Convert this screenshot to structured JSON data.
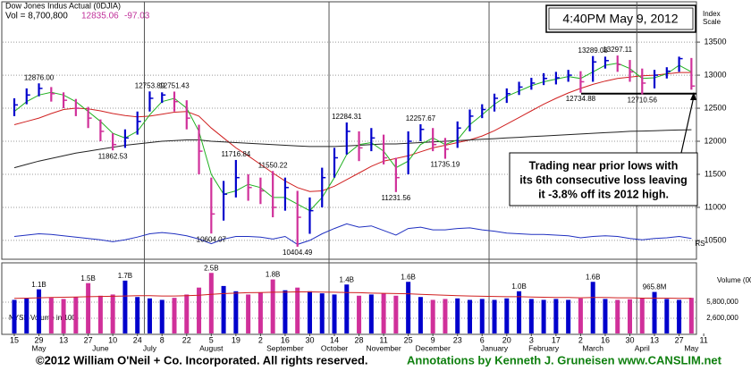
{
  "chart_data": {
    "type": "ohlc",
    "title": "Dow Jones Indus Actual (0DJIA)",
    "volume_text": "Vol = 8,700,800",
    "change": -97.03,
    "timestamp": "4:40PM May 9, 2012",
    "y_axis_label": [
      "Index",
      "Scale"
    ],
    "annotation": [
      "Trading near prior lows with",
      "its 6th consecutive loss leaving",
      "it -3.8% off its 2012 high."
    ],
    "categories": [
      "15",
      null,
      "29",
      null,
      "13",
      null,
      "27",
      null,
      "10",
      null,
      "24",
      null,
      "8",
      null,
      "22",
      null,
      "5",
      null,
      "19",
      null,
      "2",
      null,
      "16",
      null,
      "30",
      null,
      "14",
      null,
      "28",
      null,
      "11",
      null,
      "25",
      null,
      "9",
      null,
      "23",
      null,
      "6",
      null,
      "20",
      null,
      "3",
      null,
      "17",
      null,
      "2",
      null,
      "16",
      null,
      "30",
      null,
      "13",
      null,
      "27",
      null,
      "11"
    ],
    "months": [
      null,
      null,
      "May",
      null,
      null,
      null,
      null,
      "June",
      null,
      null,
      null,
      "July",
      null,
      null,
      null,
      null,
      "August",
      null,
      null,
      null,
      null,
      null,
      "September",
      null,
      null,
      null,
      "October",
      null,
      null,
      null,
      "November",
      null,
      null,
      null,
      "December",
      null,
      null,
      null,
      null,
      "January",
      null,
      null,
      null,
      "February",
      null,
      null,
      null,
      "March",
      null,
      null,
      null,
      "April",
      null,
      null,
      null,
      "May",
      null
    ],
    "ylim": [
      10215,
      14110
    ],
    "yticks": [
      10500,
      11000,
      11500,
      12000,
      12500,
      13000,
      13500
    ],
    "grid": true,
    "up_color": "#0000cc",
    "down_color": "#d0309a",
    "high": {
      "values": [
        12650,
        12800,
        12876,
        12820,
        12740,
        12640,
        12520,
        12330,
        12120,
        12180,
        12450,
        12753.89,
        12740,
        12751.43,
        12620,
        12250,
        11450,
        11400,
        11716.84,
        11500,
        11450,
        11550.22,
        11450,
        11250,
        11150,
        11600,
        11900,
        12284.31,
        12150,
        12200,
        12100,
        11750,
        12150,
        12257.67,
        12200,
        12050,
        12300,
        12480,
        12560,
        12720,
        12800,
        12900,
        12960,
        13030,
        13050,
        13080,
        13060,
        13289.08,
        13280,
        13297.11,
        13230,
        13100,
        13080,
        13120,
        13280,
        13260,
        null
      ],
      "value_labels": [
        null,
        null,
        "12876.00",
        null,
        null,
        null,
        null,
        null,
        null,
        null,
        null,
        "12753.89",
        null,
        "12751.43",
        null,
        null,
        null,
        null,
        "11716.84",
        null,
        null,
        "11550.22",
        null,
        null,
        null,
        null,
        null,
        "12284.31",
        null,
        null,
        null,
        null,
        null,
        "12257.67",
        null,
        null,
        null,
        null,
        null,
        null,
        null,
        null,
        null,
        null,
        null,
        null,
        null,
        "13289.08",
        null,
        "13297.11",
        null,
        null,
        null,
        null,
        null,
        null,
        null
      ]
    },
    "low": {
      "values": [
        12380,
        12560,
        12680,
        12600,
        12500,
        12380,
        12200,
        12000,
        11862.53,
        11900,
        12100,
        12450,
        12580,
        12450,
        12180,
        11500,
        10604.07,
        10800,
        11150,
        11100,
        11050,
        10850,
        10950,
        10404.49,
        10600,
        11000,
        11450,
        11800,
        11700,
        11850,
        11650,
        11231.56,
        11500,
        12000,
        11850,
        11735.19,
        11900,
        12150,
        12350,
        12450,
        12580,
        12700,
        12780,
        12850,
        12860,
        12900,
        12734.88,
        12900,
        13100,
        13050,
        12900,
        12710.56,
        12800,
        12950,
        13050,
        12780,
        null
      ],
      "value_labels": [
        null,
        null,
        null,
        null,
        null,
        null,
        null,
        null,
        "11862.53",
        null,
        null,
        null,
        null,
        null,
        null,
        null,
        "10604.07",
        null,
        null,
        null,
        null,
        null,
        null,
        "10404.49",
        null,
        null,
        null,
        null,
        null,
        null,
        null,
        "11231.56",
        null,
        null,
        null,
        "11735.19",
        null,
        null,
        null,
        null,
        null,
        null,
        null,
        null,
        null,
        null,
        "12734.88",
        null,
        null,
        null,
        null,
        "12710.56",
        null,
        null,
        null,
        null,
        null
      ]
    },
    "close": {
      "values": [
        12550,
        12700,
        12800,
        12720,
        12620,
        12500,
        12350,
        12150,
        11950,
        12050,
        12300,
        12650,
        12700,
        12600,
        12350,
        11850,
        10900,
        11200,
        11450,
        11300,
        11250,
        11000,
        11300,
        10850,
        10950,
        11450,
        11750,
        12150,
        11900,
        12050,
        11750,
        11450,
        12000,
        12180,
        11950,
        11880,
        12200,
        12380,
        12480,
        12650,
        12720,
        12820,
        12880,
        12950,
        12960,
        13000,
        12900,
        13200,
        13220,
        13160,
        13050,
        12880,
        13000,
        13060,
        13250,
        12835.06,
        null
      ]
    },
    "support_line": 12720,
    "series": [
      {
        "color": "#d02020",
        "values": [
          12250,
          12300,
          12350,
          12420,
          12480,
          12500,
          12490,
          12460,
          12420,
          12390,
          12370,
          12380,
          12410,
          12440,
          12450,
          12380,
          12200,
          12050,
          11900,
          11780,
          11650,
          11520,
          11400,
          11300,
          11240,
          11250,
          11320,
          11420,
          11520,
          11620,
          11700,
          11740,
          11780,
          11840,
          11900,
          11940,
          11980,
          12020,
          12080,
          12160,
          12260,
          12360,
          12460,
          12560,
          12650,
          12730,
          12800,
          12860,
          12910,
          12950,
          12970,
          12990,
          13000,
          13020,
          13040,
          13040,
          null
        ]
      },
      {
        "color": "#222222",
        "values": [
          11600,
          11650,
          11700,
          11740,
          11780,
          11820,
          11850,
          11880,
          11910,
          11940,
          11960,
          11980,
          12000,
          12010,
          12020,
          12020,
          12000,
          11990,
          11980,
          11970,
          11960,
          11950,
          11940,
          11930,
          11920,
          11920,
          11920,
          11930,
          11940,
          11950,
          11960,
          11960,
          11970,
          11980,
          11990,
          12000,
          12010,
          12020,
          12030,
          12040,
          12050,
          12060,
          12070,
          12080,
          12090,
          12100,
          12110,
          12120,
          12130,
          12140,
          12150,
          12155,
          12160,
          12165,
          12170,
          12175,
          null
        ]
      },
      {
        "color": "#20b020",
        "values": [
          12450,
          12600,
          12700,
          12740,
          12700,
          12600,
          12450,
          12300,
          12120,
          12050,
          12150,
          12400,
          12600,
          12650,
          12500,
          12150,
          11500,
          11200,
          11250,
          11350,
          11300,
          11150,
          11150,
          11050,
          10950,
          11150,
          11450,
          11800,
          11950,
          11980,
          11850,
          11600,
          11700,
          11950,
          12050,
          11950,
          12020,
          12250,
          12400,
          12560,
          12680,
          12760,
          12840,
          12900,
          12940,
          12980,
          12950,
          13050,
          13150,
          13180,
          13100,
          12950,
          12960,
          13020,
          13150,
          13050,
          null
        ]
      },
      {
        "name": "RS",
        "color": "#2030c0",
        "values": [
          10560,
          10580,
          10600,
          10590,
          10570,
          10550,
          10530,
          10510,
          10480,
          10510,
          10550,
          10600,
          10620,
          10600,
          10570,
          10520,
          10450,
          10520,
          10560,
          10560,
          10550,
          10520,
          10560,
          10440,
          10500,
          10600,
          10680,
          10750,
          10700,
          10720,
          10650,
          10580,
          10680,
          10700,
          10660,
          10660,
          10680,
          10690,
          10660,
          10640,
          10610,
          10600,
          10590,
          10590,
          10580,
          10570,
          10540,
          10560,
          10570,
          10560,
          10530,
          10510,
          10530,
          10540,
          10560,
          10530,
          null
        ]
      }
    ],
    "volume": {
      "type": "bar",
      "title": "Volume (00)",
      "label": "NYSE Volume in 100",
      "log": true,
      "ylim": [
        1216000,
        39500000
      ],
      "yticks": [
        {
          "value": 5800000,
          "label": "5,800,000"
        },
        {
          "value": 2600000,
          "label": "2,600,000"
        }
      ],
      "values": [
        6500000,
        7000000,
        11000000,
        7200000,
        6800000,
        7500000,
        15000000,
        8000000,
        8500000,
        17000000,
        7500000,
        7000000,
        6500000,
        7200000,
        8500000,
        12000000,
        25000000,
        13000000,
        10000000,
        8500000,
        9500000,
        18000000,
        10500000,
        12000000,
        10000000,
        9000000,
        8500000,
        14000000,
        8000000,
        8500000,
        9000000,
        8000000,
        16000000,
        7500000,
        6500000,
        6800000,
        7000000,
        6500000,
        6800000,
        6500000,
        7000000,
        10000000,
        6800000,
        6500000,
        6800000,
        6500000,
        7000000,
        16000000,
        6800000,
        6500000,
        6700000,
        7000000,
        9658000,
        6800000,
        6500000,
        7200000,
        null
      ],
      "value_labels": [
        null,
        null,
        "1.1B",
        null,
        null,
        null,
        "1.5B",
        null,
        null,
        "1.7B",
        null,
        null,
        null,
        null,
        null,
        null,
        "2.5B",
        null,
        null,
        null,
        null,
        "1.8B",
        null,
        null,
        null,
        null,
        null,
        "1.4B",
        null,
        null,
        null,
        null,
        "1.6B",
        null,
        null,
        null,
        null,
        null,
        null,
        null,
        null,
        "1.0B",
        null,
        null,
        null,
        null,
        null,
        "1.6B",
        null,
        null,
        null,
        null,
        "965.8M",
        null,
        null,
        null,
        null
      ],
      "average": {
        "color": "#d02020",
        "values": [
          7000000,
          7100000,
          7200000,
          7300000,
          7400000,
          7500000,
          7600000,
          7700000,
          7800000,
          7900000,
          8000000,
          8000000,
          7900000,
          7900000,
          8000000,
          8200000,
          8600000,
          8900000,
          9100000,
          9300000,
          9400000,
          9500000,
          9600000,
          9700000,
          9700000,
          9600000,
          9500000,
          9400000,
          9300000,
          9100000,
          9000000,
          8900000,
          8800000,
          8600000,
          8400000,
          8200000,
          8000000,
          7900000,
          7800000,
          7700000,
          7600000,
          7600000,
          7500000,
          7400000,
          7300000,
          7300000,
          7200000,
          7300000,
          7300000,
          7200000,
          7200000,
          7100000,
          7100000,
          7100000,
          7000000,
          7000000,
          null
        ]
      }
    }
  },
  "footer": {
    "copyright": "©2012 William O'Neil + Co. Incorporated. All rights reserved.",
    "credit": "Annotations by Kenneth J. Gruneisen www.CANSLIM.net"
  }
}
